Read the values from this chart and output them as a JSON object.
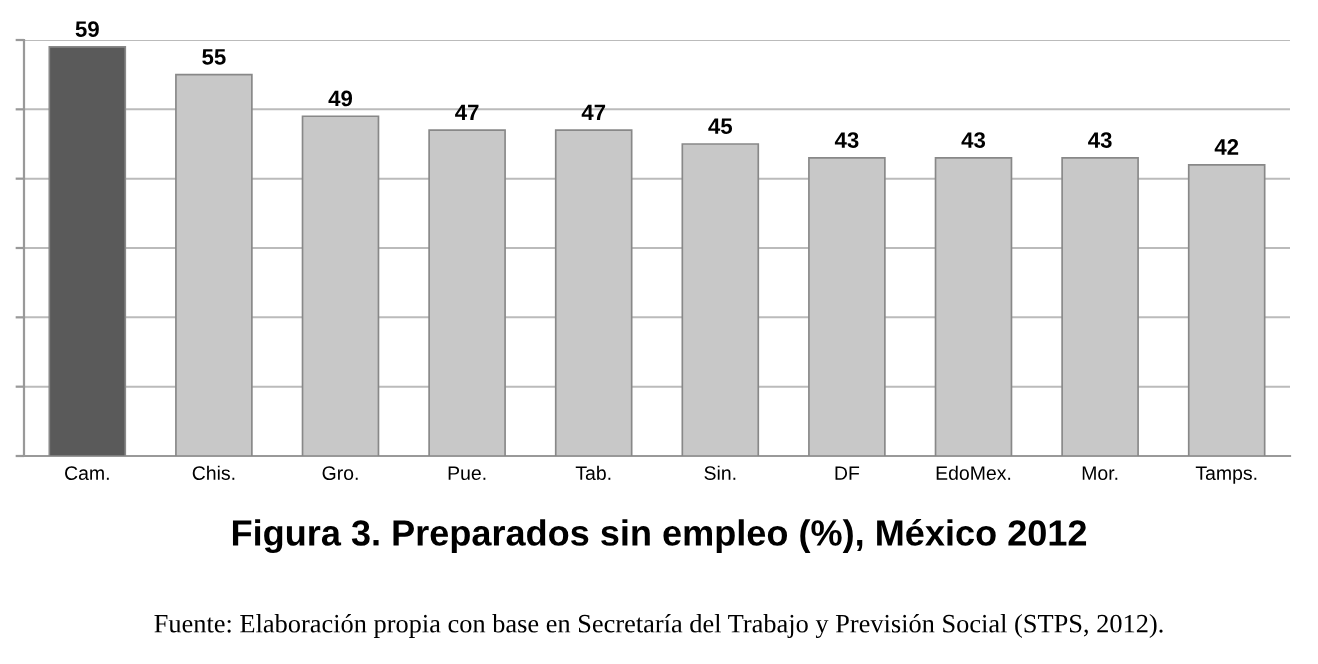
{
  "chart_data": {
    "type": "bar",
    "title": "Figura 3. Preparados sin empleo (%), México 2012",
    "categories": [
      "Cam.",
      "Chis.",
      "Gro.",
      "Pue.",
      "Tab.",
      "Sin.",
      "DF",
      "EdoMex.",
      "Mor.",
      "Tamps."
    ],
    "values": [
      59,
      55,
      49,
      47,
      47,
      45,
      43,
      43,
      43,
      42
    ],
    "colors": [
      "#5a5a5a",
      "#c8c8c8",
      "#c8c8c8",
      "#c8c8c8",
      "#c8c8c8",
      "#c8c8c8",
      "#c8c8c8",
      "#c8c8c8",
      "#c8c8c8",
      "#c8c8c8"
    ],
    "ylim": [
      0,
      60
    ],
    "yticks": [
      {
        "value": 0,
        "label": null
      },
      {
        "value": 10,
        "label": null
      },
      {
        "value": 20,
        "label": null
      },
      {
        "value": 30,
        "label": null
      },
      {
        "value": 40,
        "label": null
      },
      {
        "value": 50,
        "label": null
      },
      {
        "value": 60,
        "label": null
      }
    ],
    "tick_labels": "x",
    "grid": "y",
    "data_labels": true,
    "annotations": [
      "Fuente: Elaboración propia con base en Secretaría del Trabajo y Previsión Social (STPS, 2012)."
    ]
  }
}
